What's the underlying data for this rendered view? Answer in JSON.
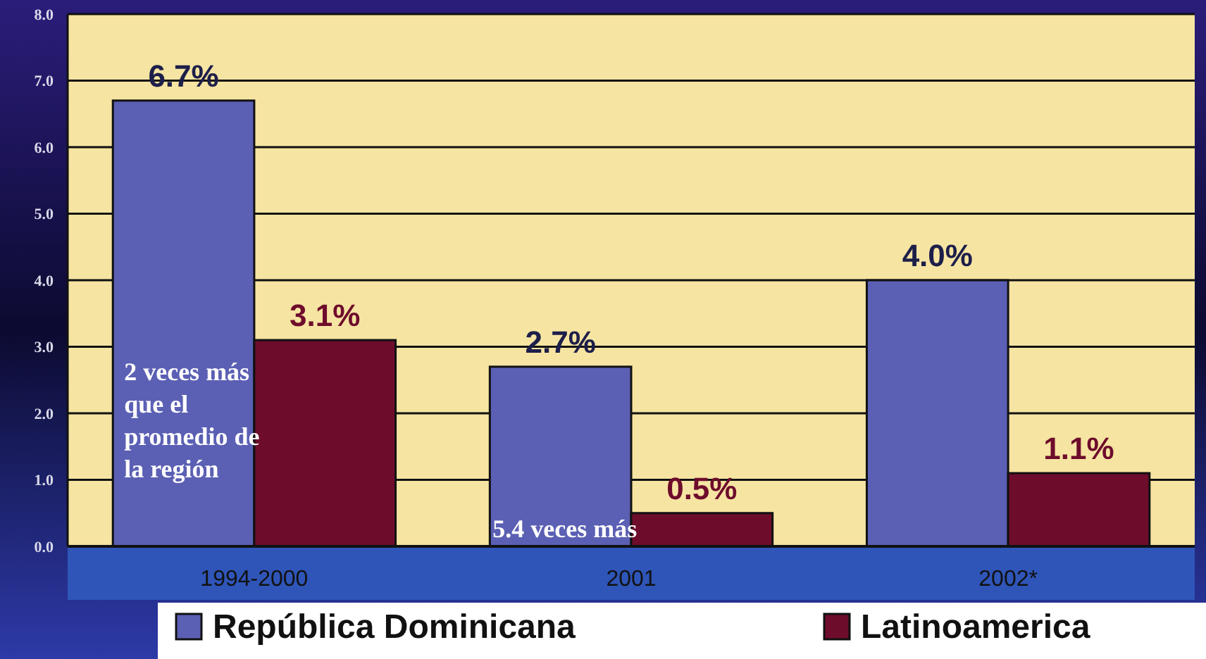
{
  "chart_data": {
    "type": "bar",
    "categories": [
      "1994-2000",
      "2001",
      "2002*"
    ],
    "series": [
      {
        "name": "República Dominicana",
        "color": "#5b60b4",
        "values": [
          6.7,
          2.7,
          4.0
        ],
        "value_labels": [
          "6.7%",
          "2.7%",
          "4.0%"
        ]
      },
      {
        "name": "Latinoamerica",
        "color": "#6e0c2c",
        "values": [
          3.1,
          0.5,
          1.1
        ],
        "value_labels": [
          "3.1%",
          "0.5%",
          "1.1%"
        ]
      }
    ],
    "ylim": [
      0,
      8
    ],
    "yticks": [
      {
        "value": 0,
        "label": "0.0"
      },
      {
        "value": 1,
        "label": "1.0"
      },
      {
        "value": 2,
        "label": "2.0"
      },
      {
        "value": 3,
        "label": "3.0"
      },
      {
        "value": 4,
        "label": "4.0"
      },
      {
        "value": 5,
        "label": "5.0"
      },
      {
        "value": 6,
        "label": "6.0"
      },
      {
        "value": 7,
        "label": "7.0"
      },
      {
        "value": 8,
        "label": "8.0"
      }
    ],
    "grid": "y",
    "legend": "bottom",
    "annotations": [
      "2 veces más que el promedio de la región",
      "5.4 veces más"
    ]
  }
}
